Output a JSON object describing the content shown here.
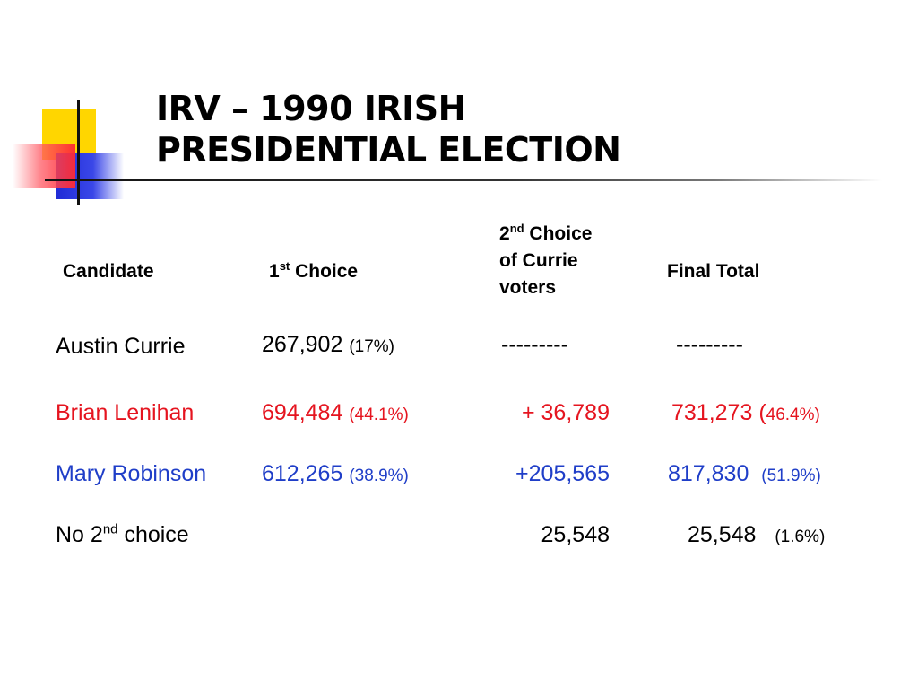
{
  "title": {
    "line1": "IRV – 1990 IRISH",
    "line2": "PRESIDENTIAL ELECTION"
  },
  "headers": {
    "candidate": "Candidate",
    "first_choice": {
      "num": "1",
      "sup": "st",
      "rest": " Choice"
    },
    "second_choice": {
      "num": "2",
      "sup": "nd",
      "rest": " Choice",
      "line2": "of Currie",
      "line3": "voters"
    },
    "final_total": "Final Total"
  },
  "colors": {
    "black": "#000000",
    "red": "#e5141f",
    "blue": "#1f3ec8",
    "logo_yellow": "#ffd600",
    "logo_blue": "#1f2bd6",
    "logo_red": "#ff2832"
  },
  "rows": [
    {
      "candidate": "Austin Currie",
      "first": "267,902",
      "first_pct": "(17%)",
      "second": "---------",
      "final": "---------",
      "final_pct": ""
    },
    {
      "candidate": "Brian Lenihan",
      "first": "694,484",
      "first_pct": "(44.1%)",
      "second": "+ 36,789",
      "final": "731,273 (",
      "final_pct": "46.4%)"
    },
    {
      "candidate": "Mary Robinson",
      "first": "612,265",
      "first_pct": "(38.9%)",
      "second": "+205,565",
      "final": "817,830",
      "final_pct": "(51.9%)"
    },
    {
      "candidate_num": "No 2",
      "candidate_sup": "nd",
      "candidate_rest": " choice",
      "first": "",
      "first_pct": "",
      "second": "25,548",
      "final": "25,548",
      "final_pct": "(1.6%)"
    }
  ]
}
